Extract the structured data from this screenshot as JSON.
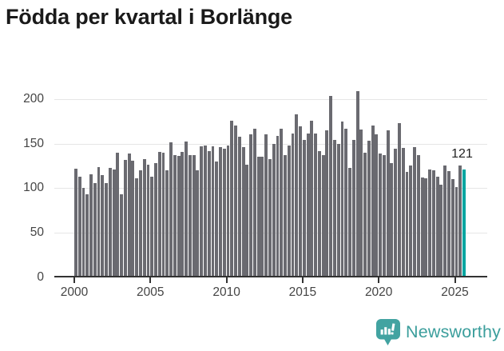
{
  "title": "Födda per kvartal i Borlänge",
  "colors": {
    "bar": "#6a6a70",
    "highlight": "#00a5a0",
    "grid": "#e6e6e6",
    "axis": "#333333",
    "tick_label": "#444444",
    "title": "#1a1a1a",
    "brand": "#3b9e9c"
  },
  "y_axis": {
    "ticks": [
      {
        "label": "200",
        "value": 200
      },
      {
        "label": "150",
        "value": 150
      },
      {
        "label": "100",
        "value": 100
      },
      {
        "label": "50",
        "value": 50
      },
      {
        "label": "0",
        "value": 0
      }
    ]
  },
  "x_axis": {
    "ticks": [
      {
        "label": "2000",
        "year": 2000
      },
      {
        "label": "2005",
        "year": 2005
      },
      {
        "label": "2010",
        "year": 2010
      },
      {
        "label": "2015",
        "year": 2015
      },
      {
        "label": "2020",
        "year": 2020
      },
      {
        "label": "2025",
        "year": 2025
      }
    ]
  },
  "chart_data": {
    "type": "bar",
    "title": "Födda per kvartal i Borlänge",
    "xlabel": "",
    "ylabel": "",
    "ylim": [
      0,
      220
    ],
    "grid": true,
    "legend": "none",
    "highlight_last": true,
    "last_value_label": "121",
    "categories": [
      "2000-Q1",
      "2000-Q2",
      "2000-Q3",
      "2000-Q4",
      "2001-Q1",
      "2001-Q2",
      "2001-Q3",
      "2001-Q4",
      "2002-Q1",
      "2002-Q2",
      "2002-Q3",
      "2002-Q4",
      "2003-Q1",
      "2003-Q2",
      "2003-Q3",
      "2003-Q4",
      "2004-Q1",
      "2004-Q2",
      "2004-Q3",
      "2004-Q4",
      "2005-Q1",
      "2005-Q2",
      "2005-Q3",
      "2005-Q4",
      "2006-Q1",
      "2006-Q2",
      "2006-Q3",
      "2006-Q4",
      "2007-Q1",
      "2007-Q2",
      "2007-Q3",
      "2007-Q4",
      "2008-Q1",
      "2008-Q2",
      "2008-Q3",
      "2008-Q4",
      "2009-Q1",
      "2009-Q2",
      "2009-Q3",
      "2009-Q4",
      "2010-Q1",
      "2010-Q2",
      "2010-Q3",
      "2010-Q4",
      "2011-Q1",
      "2011-Q2",
      "2011-Q3",
      "2011-Q4",
      "2012-Q1",
      "2012-Q2",
      "2012-Q3",
      "2012-Q4",
      "2013-Q1",
      "2013-Q2",
      "2013-Q3",
      "2013-Q4",
      "2014-Q1",
      "2014-Q2",
      "2014-Q3",
      "2014-Q4",
      "2015-Q1",
      "2015-Q2",
      "2015-Q3",
      "2015-Q4",
      "2016-Q1",
      "2016-Q2",
      "2016-Q3",
      "2016-Q4",
      "2017-Q1",
      "2017-Q2",
      "2017-Q3",
      "2017-Q4",
      "2018-Q1",
      "2018-Q2",
      "2018-Q3",
      "2018-Q4",
      "2019-Q1",
      "2019-Q2",
      "2019-Q3",
      "2019-Q4",
      "2020-Q1",
      "2020-Q2",
      "2020-Q3",
      "2020-Q4",
      "2021-Q1",
      "2021-Q2",
      "2021-Q3",
      "2021-Q4",
      "2022-Q1",
      "2022-Q2",
      "2022-Q3",
      "2022-Q4",
      "2023-Q1",
      "2023-Q2",
      "2023-Q3",
      "2023-Q4",
      "2024-Q1",
      "2024-Q2",
      "2024-Q3",
      "2024-Q4",
      "2025-Q1",
      "2025-Q2",
      "2025-Q3"
    ],
    "values": [
      122,
      113,
      100,
      93,
      116,
      106,
      124,
      115,
      106,
      123,
      121,
      140,
      93,
      132,
      139,
      131,
      111,
      120,
      133,
      126,
      113,
      128,
      141,
      140,
      120,
      151,
      137,
      136,
      141,
      152,
      137,
      137,
      120,
      147,
      148,
      142,
      147,
      130,
      146,
      144,
      148,
      176,
      170,
      158,
      146,
      126,
      160,
      167,
      135,
      135,
      160,
      133,
      150,
      159,
      167,
      137,
      148,
      161,
      183,
      169,
      154,
      161,
      176,
      161,
      142,
      137,
      165,
      203,
      154,
      150,
      175,
      167,
      123,
      154,
      209,
      166,
      140,
      153,
      170,
      160,
      139,
      137,
      165,
      128,
      144,
      173,
      145,
      118,
      125,
      146,
      137,
      112,
      111,
      121,
      120,
      113,
      104,
      125,
      119,
      110,
      101,
      125,
      121
    ]
  },
  "branding": {
    "name": "Newsworthy"
  }
}
